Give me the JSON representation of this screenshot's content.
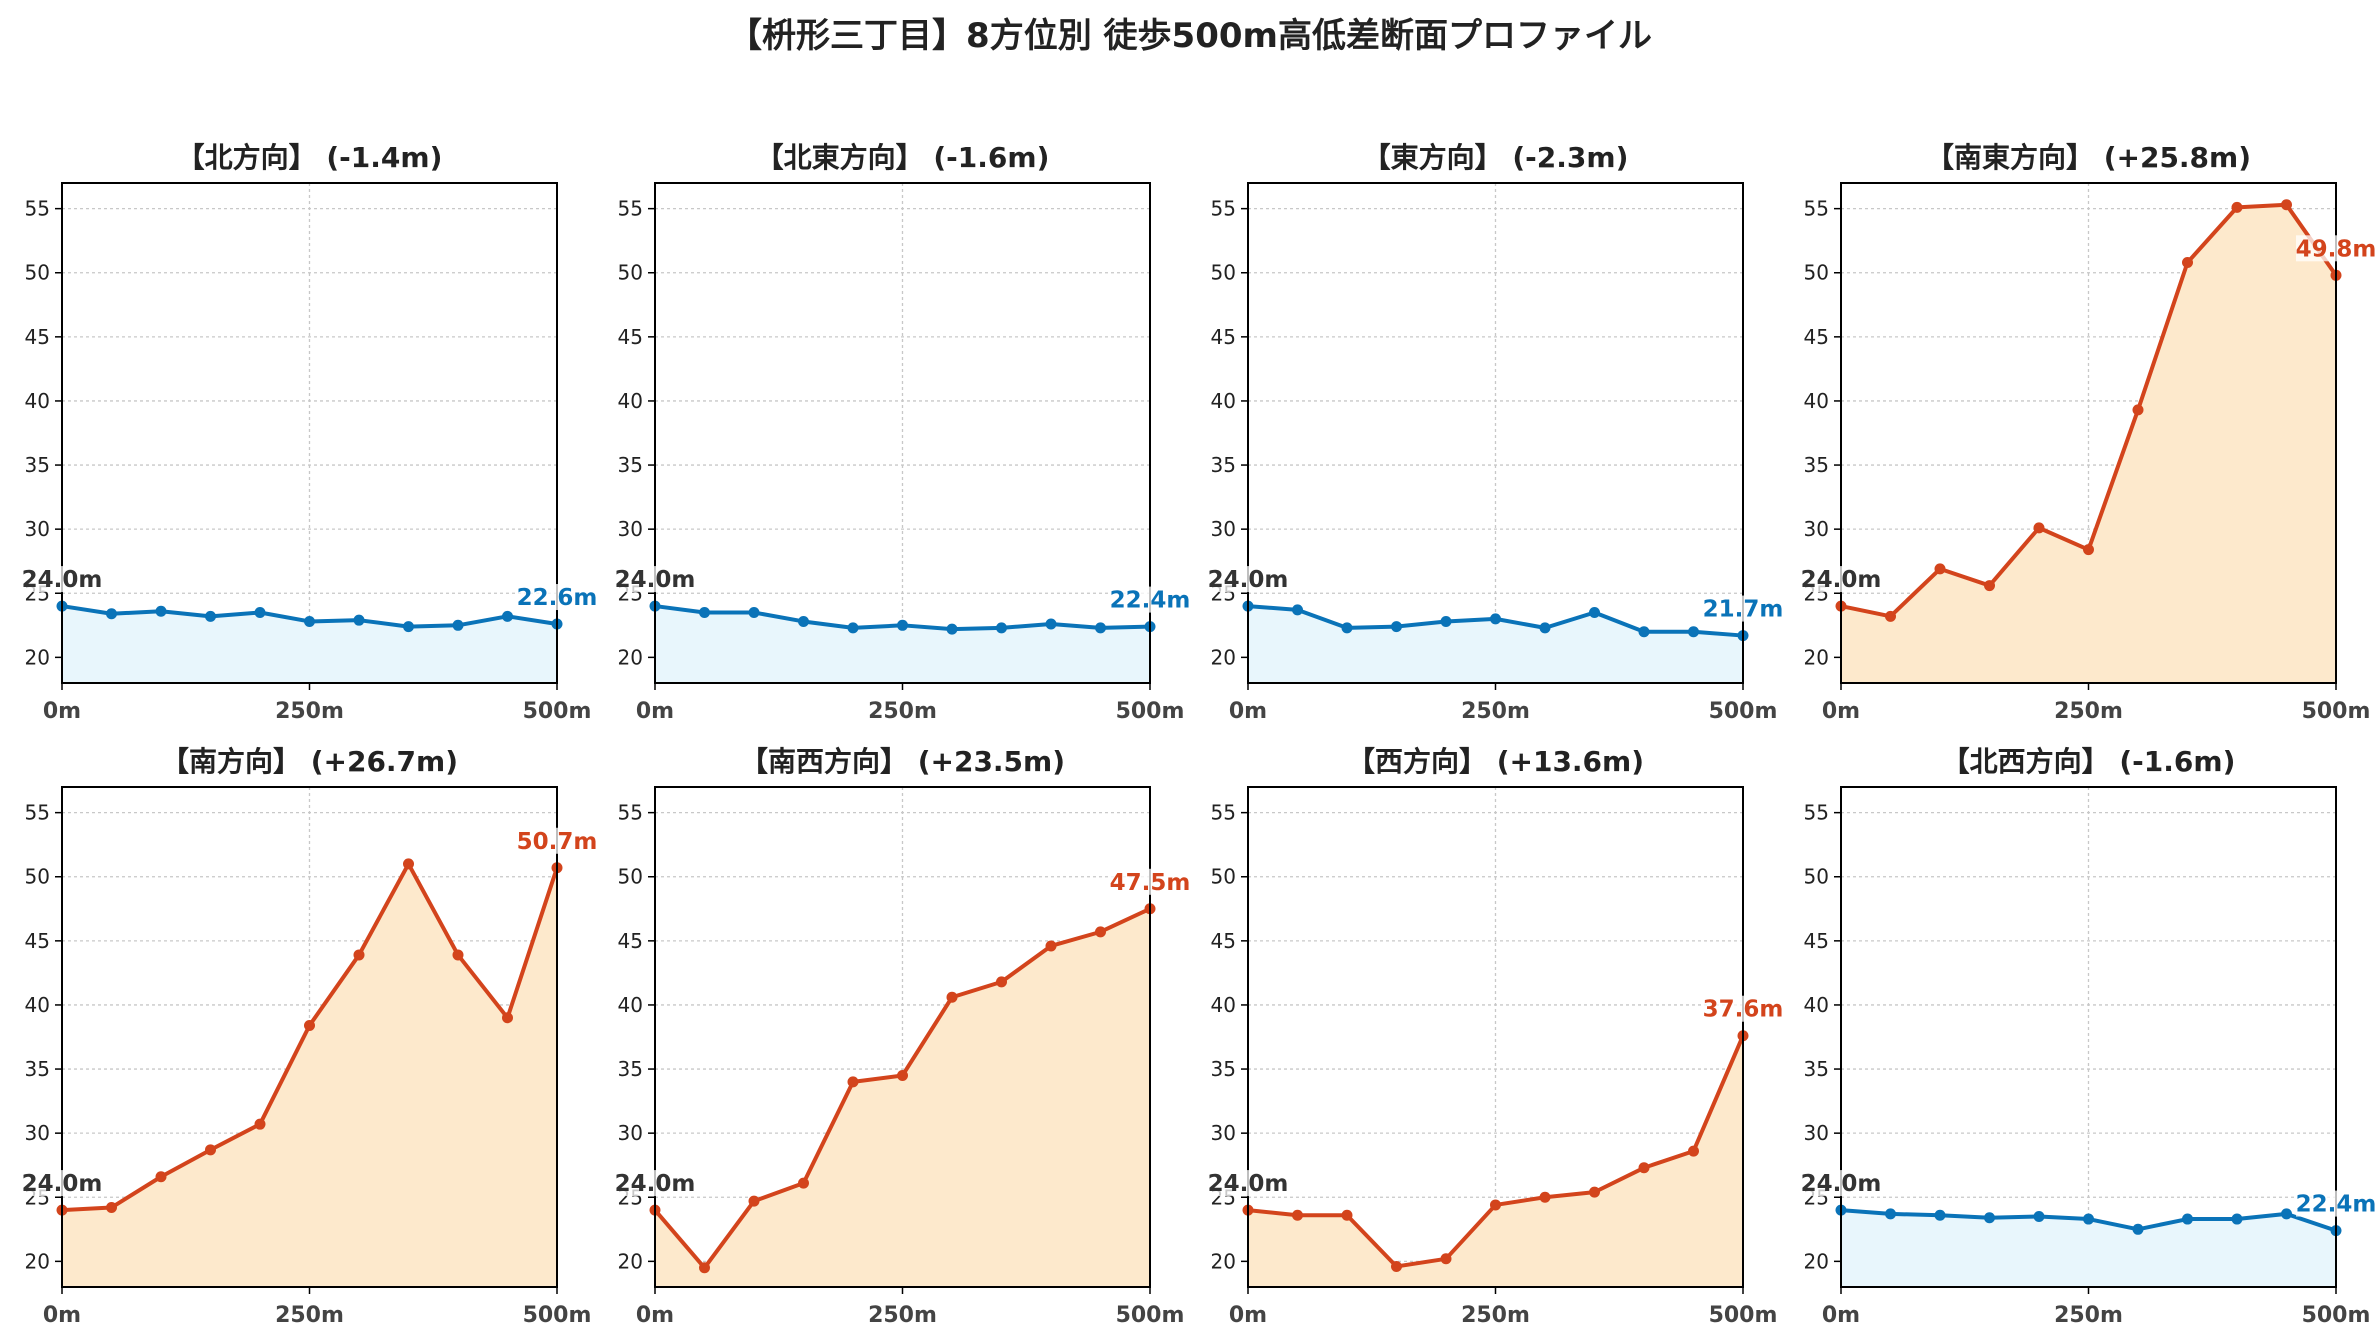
{
  "title": "【枡形三丁目】8方位別 徒歩500m高低差断面プロファイル",
  "colors": {
    "down": "#0a73b8",
    "up": "#d3441c",
    "down_fill": "#e8f6fc",
    "up_fill": "#fde9cc",
    "start_label": "#333333"
  },
  "chart_data": [
    {
      "type": "area",
      "title": "【北方向】 (-1.4m)",
      "direction": "down",
      "x": [
        0,
        50,
        100,
        150,
        200,
        250,
        300,
        350,
        400,
        450,
        500
      ],
      "values": [
        24.0,
        23.4,
        23.6,
        23.2,
        23.5,
        22.8,
        22.9,
        22.4,
        22.5,
        23.2,
        22.6
      ],
      "start_label": "24.0m",
      "end_label": "22.6m",
      "xticks": [
        "0m",
        "250m",
        "500m"
      ],
      "yticks": [
        20,
        25,
        30,
        35,
        40,
        45,
        50,
        55
      ],
      "xlim": [
        0,
        500
      ],
      "ylim": [
        18,
        57
      ],
      "grid": true
    },
    {
      "type": "area",
      "title": "【北東方向】 (-1.6m)",
      "direction": "down",
      "x": [
        0,
        50,
        100,
        150,
        200,
        250,
        300,
        350,
        400,
        450,
        500
      ],
      "values": [
        24.0,
        23.5,
        23.5,
        22.8,
        22.3,
        22.5,
        22.2,
        22.3,
        22.6,
        22.3,
        22.4
      ],
      "start_label": "24.0m",
      "end_label": "22.4m",
      "xticks": [
        "0m",
        "250m",
        "500m"
      ],
      "yticks": [
        20,
        25,
        30,
        35,
        40,
        45,
        50,
        55
      ],
      "xlim": [
        0,
        500
      ],
      "ylim": [
        18,
        57
      ],
      "grid": true
    },
    {
      "type": "area",
      "title": "【東方向】 (-2.3m)",
      "direction": "down",
      "x": [
        0,
        50,
        100,
        150,
        200,
        250,
        300,
        350,
        400,
        450,
        500
      ],
      "values": [
        24.0,
        23.7,
        22.3,
        22.4,
        22.8,
        23.0,
        22.3,
        23.5,
        22.0,
        22.0,
        21.7
      ],
      "start_label": "24.0m",
      "end_label": "21.7m",
      "xticks": [
        "0m",
        "250m",
        "500m"
      ],
      "yticks": [
        20,
        25,
        30,
        35,
        40,
        45,
        50,
        55
      ],
      "xlim": [
        0,
        500
      ],
      "ylim": [
        18,
        57
      ],
      "grid": true
    },
    {
      "type": "area",
      "title": "【南東方向】 (+25.8m)",
      "direction": "up",
      "x": [
        0,
        50,
        100,
        150,
        200,
        250,
        300,
        350,
        400,
        450,
        500
      ],
      "values": [
        24.0,
        23.2,
        26.9,
        25.6,
        30.1,
        28.4,
        39.3,
        50.8,
        55.1,
        55.3,
        49.8
      ],
      "start_label": "24.0m",
      "end_label": "49.8m",
      "xticks": [
        "0m",
        "250m",
        "500m"
      ],
      "yticks": [
        20,
        25,
        30,
        35,
        40,
        45,
        50,
        55
      ],
      "xlim": [
        0,
        500
      ],
      "ylim": [
        18,
        57
      ],
      "grid": true
    },
    {
      "type": "area",
      "title": "【南方向】 (+26.7m)",
      "direction": "up",
      "x": [
        0,
        50,
        100,
        150,
        200,
        250,
        300,
        350,
        400,
        450,
        500
      ],
      "values": [
        24.0,
        24.2,
        26.6,
        28.7,
        30.7,
        38.4,
        43.9,
        51.0,
        43.9,
        39.0,
        50.7
      ],
      "start_label": "24.0m",
      "end_label": "50.7m",
      "xticks": [
        "0m",
        "250m",
        "500m"
      ],
      "yticks": [
        20,
        25,
        30,
        35,
        40,
        45,
        50,
        55
      ],
      "xlim": [
        0,
        500
      ],
      "ylim": [
        18,
        57
      ],
      "grid": true
    },
    {
      "type": "area",
      "title": "【南西方向】 (+23.5m)",
      "direction": "up",
      "x": [
        0,
        50,
        100,
        150,
        200,
        250,
        300,
        350,
        400,
        450,
        500
      ],
      "values": [
        24.0,
        19.5,
        24.7,
        26.1,
        34.0,
        34.5,
        40.6,
        41.8,
        44.6,
        45.7,
        47.5
      ],
      "start_label": "24.0m",
      "end_label": "47.5m",
      "xticks": [
        "0m",
        "250m",
        "500m"
      ],
      "yticks": [
        20,
        25,
        30,
        35,
        40,
        45,
        50,
        55
      ],
      "xlim": [
        0,
        500
      ],
      "ylim": [
        18,
        57
      ],
      "grid": true
    },
    {
      "type": "area",
      "title": "【西方向】 (+13.6m)",
      "direction": "up",
      "x": [
        0,
        50,
        100,
        150,
        200,
        250,
        300,
        350,
        400,
        450,
        500
      ],
      "values": [
        24.0,
        23.6,
        23.6,
        19.6,
        20.2,
        24.4,
        25.0,
        25.4,
        27.3,
        28.6,
        37.6
      ],
      "start_label": "24.0m",
      "end_label": "37.6m",
      "xticks": [
        "0m",
        "250m",
        "500m"
      ],
      "yticks": [
        20,
        25,
        30,
        35,
        40,
        45,
        50,
        55
      ],
      "xlim": [
        0,
        500
      ],
      "ylim": [
        18,
        57
      ],
      "grid": true
    },
    {
      "type": "area",
      "title": "【北西方向】 (-1.6m)",
      "direction": "down",
      "x": [
        0,
        50,
        100,
        150,
        200,
        250,
        300,
        350,
        400,
        450,
        500
      ],
      "values": [
        24.0,
        23.7,
        23.6,
        23.4,
        23.5,
        23.3,
        22.5,
        23.3,
        23.3,
        23.7,
        22.4
      ],
      "start_label": "24.0m",
      "end_label": "22.4m",
      "xticks": [
        "0m",
        "250m",
        "500m"
      ],
      "yticks": [
        20,
        25,
        30,
        35,
        40,
        45,
        50,
        55
      ],
      "xlim": [
        0,
        500
      ],
      "ylim": [
        18,
        57
      ],
      "grid": true
    }
  ]
}
